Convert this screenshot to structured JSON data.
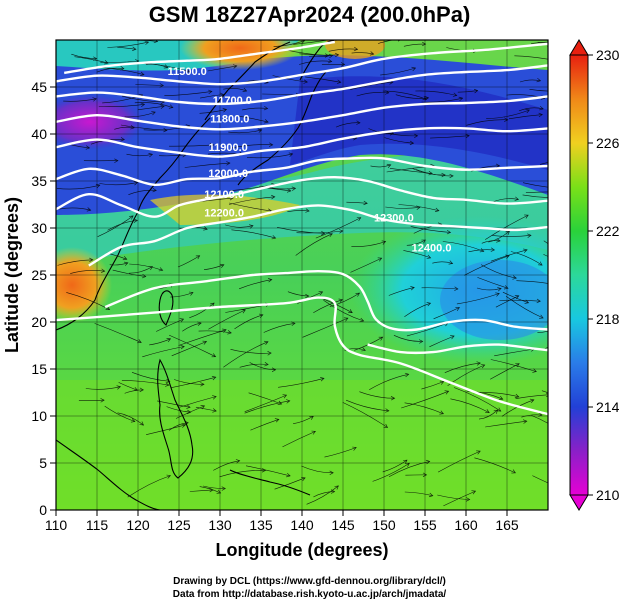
{
  "title": "GSM 18Z27Apr2024 (200.0hPa)",
  "credits": {
    "line1": "Drawing by DCL (https://www.gfd-dennou.org/library/dcl/)",
    "line2": "Data from http://database.rish.kyoto-u.ac.jp/arch/jmadata/"
  },
  "chart_data": {
    "type": "heatmap",
    "xlabel": "Longitude (degrees)",
    "ylabel": "Latitude  (degrees)",
    "xlim": [
      110,
      170
    ],
    "ylim": [
      0,
      50
    ],
    "x_ticks": [
      110,
      115,
      120,
      125,
      130,
      135,
      140,
      145,
      150,
      155,
      160,
      165
    ],
    "y_ticks": [
      0,
      5,
      10,
      15,
      20,
      25,
      30,
      35,
      40,
      45
    ],
    "colorbar": {
      "min": 210,
      "max": 230,
      "ticks": [
        210,
        214,
        218,
        222,
        226,
        230
      ]
    },
    "contour_labels": [
      {
        "text": "11500.0",
        "lon": 126.0,
        "lat": 46.3
      },
      {
        "text": "11700.0",
        "lon": 131.5,
        "lat": 43.2
      },
      {
        "text": "11800.0",
        "lon": 131.2,
        "lat": 41.2
      },
      {
        "text": "11900.0",
        "lon": 131.0,
        "lat": 38.2
      },
      {
        "text": "12000.0",
        "lon": 131.0,
        "lat": 35.4
      },
      {
        "text": "12100.0",
        "lon": 130.5,
        "lat": 33.2
      },
      {
        "text": "12200.0",
        "lon": 130.5,
        "lat": 31.2
      },
      {
        "text": "12300.0",
        "lon": 151.2,
        "lat": 30.7
      },
      {
        "text": "12400.0",
        "lon": 155.8,
        "lat": 27.5
      }
    ],
    "contour_lines": [
      {
        "name": "11500.0",
        "points": [
          [
            111,
            46.5
          ],
          [
            116,
            47.2
          ],
          [
            121,
            47.6
          ],
          [
            126,
            47.8
          ],
          [
            130,
            48.0
          ],
          [
            135,
            48.6
          ],
          [
            140,
            49.2
          ],
          [
            144,
            49.8
          ]
        ]
      },
      {
        "name": "11700.0",
        "points": [
          [
            110,
            45.6
          ],
          [
            115,
            46.2
          ],
          [
            120,
            46.0
          ],
          [
            125,
            45.6
          ],
          [
            130,
            45.3
          ],
          [
            135,
            45.6
          ],
          [
            140,
            46.3
          ],
          [
            145,
            47.0
          ],
          [
            150,
            48.0
          ],
          [
            156,
            48.6
          ],
          [
            163,
            49.0
          ],
          [
            170,
            49.6
          ]
        ]
      },
      {
        "name": "11800.0",
        "points": [
          [
            110,
            44.0
          ],
          [
            115,
            44.4
          ],
          [
            120,
            44.0
          ],
          [
            125,
            43.4
          ],
          [
            130,
            43.2
          ],
          [
            135,
            43.5
          ],
          [
            140,
            44.2
          ],
          [
            145,
            44.8
          ],
          [
            150,
            45.6
          ],
          [
            155,
            46.3
          ],
          [
            160,
            46.6
          ],
          [
            165,
            46.8
          ],
          [
            170,
            47.3
          ]
        ]
      },
      {
        "name": "11900.0",
        "points": [
          [
            110,
            41.3
          ],
          [
            115,
            42.0
          ],
          [
            120,
            41.4
          ],
          [
            125,
            40.8
          ],
          [
            130,
            40.5
          ],
          [
            135,
            40.8
          ],
          [
            140,
            41.3
          ],
          [
            145,
            42.0
          ],
          [
            150,
            42.8
          ],
          [
            155,
            43.2
          ],
          [
            160,
            43.3
          ],
          [
            165,
            43.5
          ],
          [
            170,
            44.0
          ]
        ]
      },
      {
        "name": "12000.0",
        "points": [
          [
            110,
            38.6
          ],
          [
            115,
            39.4
          ],
          [
            120,
            38.6
          ],
          [
            125,
            38.0
          ],
          [
            130,
            37.6
          ],
          [
            135,
            38.2
          ],
          [
            140,
            38.6
          ],
          [
            145,
            39.5
          ],
          [
            150,
            40.2
          ],
          [
            155,
            40.6
          ],
          [
            160,
            40.6
          ],
          [
            165,
            40.3
          ],
          [
            170,
            40.6
          ]
        ]
      },
      {
        "name": "12100.0",
        "points": [
          [
            110,
            35.2
          ],
          [
            114,
            36.3
          ],
          [
            118,
            35.6
          ],
          [
            122,
            34.6
          ],
          [
            126,
            35.2
          ],
          [
            130,
            35.3
          ],
          [
            134,
            36.0
          ],
          [
            138,
            36.4
          ],
          [
            142,
            37.2
          ],
          [
            146,
            37.4
          ],
          [
            150,
            37.4
          ],
          [
            155,
            36.6
          ],
          [
            160,
            36.2
          ],
          [
            165,
            36.4
          ],
          [
            170,
            36.6
          ]
        ]
      },
      {
        "name": "12200.0",
        "points": [
          [
            110,
            32.0
          ],
          [
            114,
            33.6
          ],
          [
            118,
            32.4
          ],
          [
            122,
            31.2
          ],
          [
            125,
            32.4
          ],
          [
            128,
            33.0
          ],
          [
            132,
            33.6
          ],
          [
            136,
            34.4
          ],
          [
            140,
            35.1
          ],
          [
            144,
            35.4
          ],
          [
            148,
            35.0
          ],
          [
            152,
            34.0
          ],
          [
            156,
            33.2
          ],
          [
            160,
            33.0
          ],
          [
            165,
            32.6
          ],
          [
            170,
            32.9
          ]
        ]
      },
      {
        "name": "12300.0",
        "points": [
          [
            114,
            26.0
          ],
          [
            118,
            28.0
          ],
          [
            122,
            28.6
          ],
          [
            126,
            30.0
          ],
          [
            130,
            30.6
          ],
          [
            134,
            31.2
          ],
          [
            138,
            32.0
          ],
          [
            142,
            32.4
          ],
          [
            146,
            31.9
          ],
          [
            150,
            30.9
          ],
          [
            154,
            30.4
          ],
          [
            158,
            30.2
          ],
          [
            162,
            30.0
          ],
          [
            166,
            29.8
          ],
          [
            170,
            30.1
          ]
        ]
      },
      {
        "name": "12400.0",
        "points": [
          [
            116,
            21.6
          ],
          [
            122,
            23.6
          ],
          [
            128,
            24.3
          ],
          [
            134,
            25.0
          ],
          [
            138,
            25.2
          ],
          [
            142,
            25.4
          ],
          [
            145,
            25.1
          ],
          [
            147,
            23.8
          ],
          [
            148,
            22.2
          ],
          [
            149,
            20.3
          ],
          [
            151,
            19.3
          ],
          [
            154,
            19.2
          ],
          [
            158,
            20.0
          ],
          [
            162,
            20.2
          ],
          [
            166,
            19.5
          ],
          [
            170,
            19.2
          ]
        ]
      },
      {
        "name": "south-a",
        "points": [
          [
            110,
            20.2
          ],
          [
            116,
            20.6
          ],
          [
            122,
            21.0
          ],
          [
            130,
            21.6
          ],
          [
            138,
            22.0
          ],
          [
            142,
            22.6
          ],
          [
            144,
            22.0
          ],
          [
            144,
            19.6
          ],
          [
            145,
            17.5
          ],
          [
            147,
            16.5
          ],
          [
            152,
            15.6
          ],
          [
            158,
            13.6
          ],
          [
            164,
            11.6
          ],
          [
            170,
            10.2
          ]
        ]
      },
      {
        "name": "south-b",
        "points": [
          [
            148,
            17.6
          ],
          [
            152,
            16.8
          ],
          [
            156,
            16.8
          ],
          [
            160,
            17.4
          ],
          [
            164,
            17.6
          ],
          [
            168,
            17.2
          ],
          [
            170,
            17.0
          ]
        ]
      }
    ]
  }
}
